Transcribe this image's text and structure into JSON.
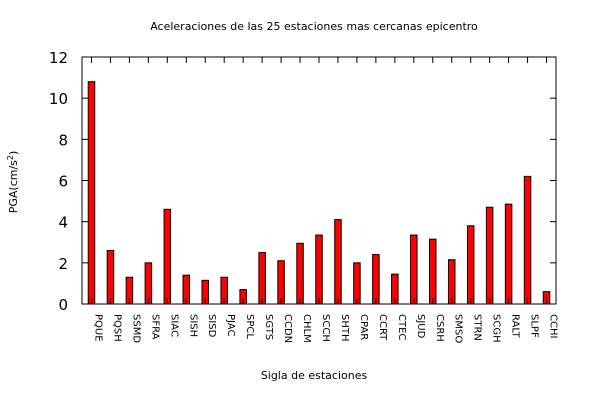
{
  "chart_data": {
    "type": "bar",
    "title": "Aceleraciones de las 25 estaciones mas cercanas epicentro",
    "xlabel": "Sigla de estaciones",
    "ylabel_main": "PGA(cm/s",
    "ylabel_sup": "2",
    "ylabel_end": ")",
    "ylim": [
      0,
      12
    ],
    "yticks": [
      "0",
      "2",
      "4",
      "6",
      "8",
      "10",
      "12"
    ],
    "grid": false,
    "bar_color": "#ff0000",
    "categories": [
      "PQUE",
      "PQSH",
      "SSMD",
      "SFRA",
      "SIAC",
      "SISH",
      "SISD",
      "PJAC",
      "SPCL",
      "SGTS",
      "CCDN",
      "CHLM",
      "SCCH",
      "SHTH",
      "CPAR",
      "CCRT",
      "CTEC",
      "SJUD",
      "CSRH",
      "SMSO",
      "STRN",
      "SCGH",
      "RALT",
      "SLPF",
      "CCHI"
    ],
    "values": [
      10.8,
      2.6,
      1.3,
      2.0,
      4.6,
      1.4,
      1.15,
      1.3,
      0.7,
      2.5,
      2.1,
      2.95,
      3.35,
      4.1,
      2.0,
      2.4,
      1.45,
      3.35,
      3.15,
      2.15,
      3.8,
      4.7,
      4.85,
      6.2,
      0.6
    ]
  }
}
